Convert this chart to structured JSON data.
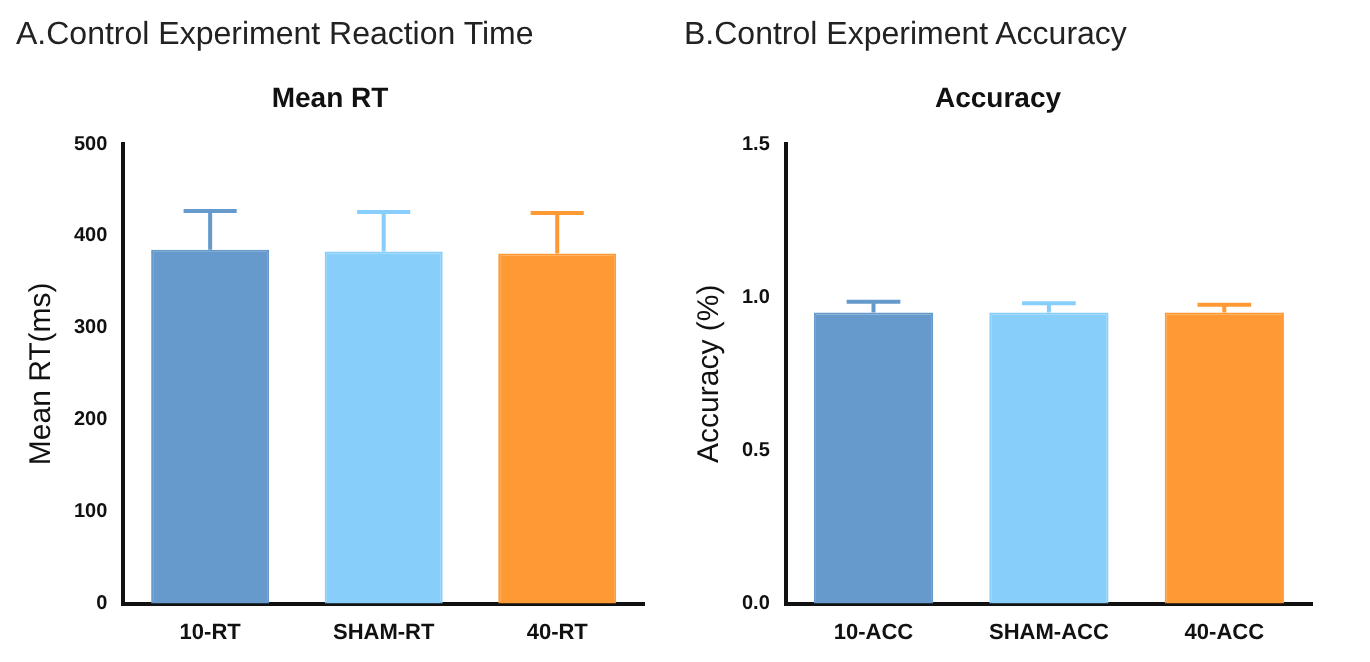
{
  "chart_data": [
    {
      "type": "bar",
      "title": "A.Control Experiment Reaction Time",
      "subtitle": "Mean RT",
      "ylabel": "Mean RT(ms)",
      "categories": [
        "10-RT",
        "SHAM-RT",
        "40-RT"
      ],
      "values": [
        385,
        383,
        381
      ],
      "errors": [
        [
          385,
          427
        ],
        [
          383,
          426
        ],
        [
          381,
          425
        ]
      ],
      "colors": [
        "#6699cc",
        "#87cefa",
        "#ff9933"
      ],
      "ylim": [
        0,
        500
      ],
      "yticks": [
        0,
        100,
        200,
        300,
        400,
        500
      ],
      "grid": false,
      "legend": false
    },
    {
      "type": "bar",
      "title": "B.Control Experiment Accuracy",
      "subtitle": "Accuracy",
      "ylabel": "Accuracy (%)",
      "categories": [
        "10-ACC",
        "SHAM-ACC",
        "40-ACC"
      ],
      "values": [
        0.95,
        0.95,
        0.95
      ],
      "errors": [
        [
          0.95,
          0.985
        ],
        [
          0.95,
          0.98
        ],
        [
          0.95,
          0.975
        ]
      ],
      "colors": [
        "#6699cc",
        "#87cefa",
        "#ff9933"
      ],
      "ylim": [
        0,
        1.5
      ],
      "yticks": [
        {
          "value": 0,
          "label": "0.0"
        },
        0.5,
        {
          "value": 1,
          "label": "1.0"
        },
        1.5
      ],
      "grid": false,
      "legend": false
    }
  ]
}
